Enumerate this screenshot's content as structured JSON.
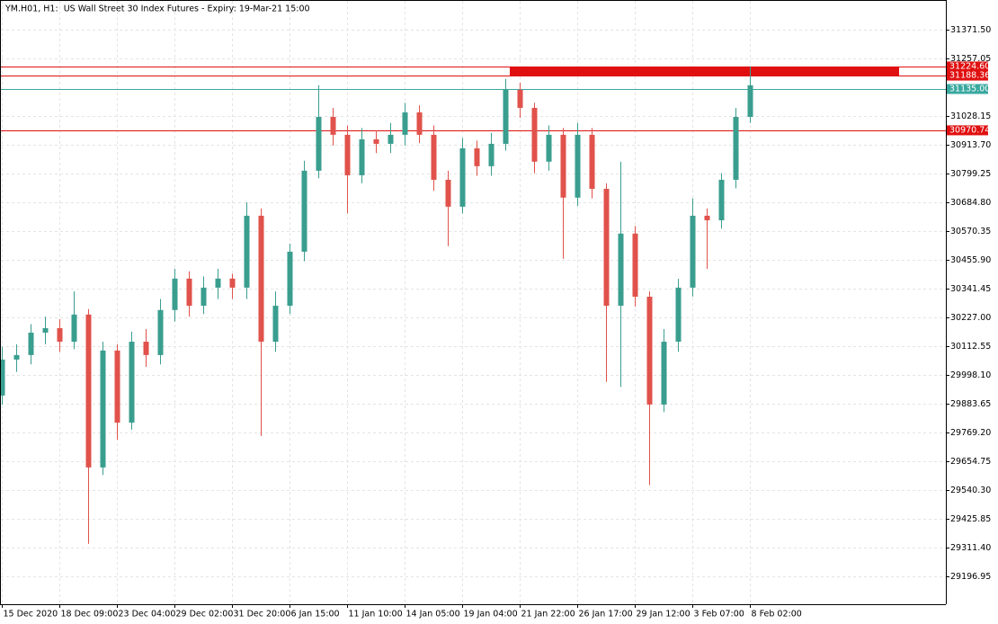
{
  "chart_data": {
    "type": "candlestick",
    "title": "YM.H01, H1:  US Wall Street 30 Index Futures - Expiry: 19-Mar-21 15:00",
    "categories": [
      "15 Dec 2020",
      null,
      null,
      null,
      "18 Dec 09:00",
      null,
      null,
      null,
      "23 Dec 04:00",
      null,
      null,
      null,
      "29 Dec 02:00",
      null,
      null,
      null,
      "31 Dec 20:00",
      null,
      null,
      null,
      "6 Jan 15:00",
      null,
      null,
      null,
      "11 Jan 10:00",
      null,
      null,
      null,
      "14 Jan 05:00",
      null,
      null,
      null,
      "19 Jan 04:00",
      null,
      null,
      null,
      "21 Jan 22:00",
      null,
      null,
      null,
      "26 Jan 17:00",
      null,
      null,
      null,
      "29 Jan 12:00",
      null,
      null,
      null,
      "3 Feb 07:00",
      null,
      null,
      null,
      "8 Feb 02:00"
    ],
    "open": [
      29916,
      30059,
      30077,
      30166,
      30184,
      30130,
      30238,
      29630,
      30095,
      29808,
      30130,
      30077,
      30256,
      30381,
      30273,
      30345,
      30381,
      30345,
      30631,
      30130,
      30273,
      30488,
      30810,
      31024,
      30953,
      30792,
      30935,
      30917,
      30953,
      31042,
      30953,
      30774,
      30667,
      30899,
      30828,
      30917,
      31132,
      31060,
      30846,
      30953,
      30703,
      30953,
      30738,
      30273,
      30560,
      30309,
      29880,
      30130,
      30345,
      30631,
      30613,
      30774,
      31024
    ],
    "high": [
      30110,
      30120,
      30200,
      30230,
      30220,
      30330,
      30260,
      30130,
      30120,
      30170,
      30180,
      30300,
      30420,
      30410,
      30390,
      30420,
      30400,
      30685,
      30660,
      30330,
      30520,
      30850,
      31150,
      31060,
      30990,
      30980,
      30970,
      31000,
      31080,
      31070,
      30990,
      30810,
      30940,
      30930,
      30960,
      31175,
      31160,
      31080,
      30990,
      30980,
      31000,
      30980,
      30760,
      30846,
      30590,
      30330,
      30180,
      30380,
      30700,
      30660,
      30800,
      31060,
      31225
    ],
    "low": [
      29880,
      30010,
      30040,
      30120,
      30090,
      30100,
      29326,
      29600,
      29740,
      29780,
      30030,
      30040,
      30210,
      30230,
      30240,
      30300,
      30300,
      30300,
      29755,
      30090,
      30240,
      30450,
      30780,
      30910,
      30640,
      30760,
      30880,
      30880,
      30910,
      30920,
      30730,
      30510,
      30640,
      30790,
      30790,
      30890,
      31020,
      30800,
      30810,
      30460,
      30670,
      30700,
      29970,
      29950,
      30270,
      29560,
      29850,
      30090,
      30310,
      30420,
      30580,
      30740,
      31000
    ],
    "close": [
      30059,
      30077,
      30166,
      30184,
      30130,
      30238,
      29630,
      30095,
      29808,
      30130,
      30077,
      30256,
      30381,
      30273,
      30345,
      30381,
      30345,
      30631,
      30130,
      30273,
      30488,
      30810,
      31024,
      30953,
      30792,
      30935,
      30917,
      30953,
      31042,
      30953,
      30774,
      30667,
      30899,
      30828,
      30917,
      31132,
      31060,
      30846,
      30953,
      30703,
      30953,
      30738,
      30273,
      30560,
      30309,
      29880,
      30130,
      30345,
      30631,
      30613,
      30774,
      31024,
      31150
    ],
    "up_color": "#3a9e8f",
    "down_color": "#e0524b",
    "ylim": [
      29086,
      31489
    ],
    "yticks": [
      {
        "value": 31371.5,
        "label": "31371.50"
      },
      31257.05,
      31028.15,
      {
        "value": 30913.7,
        "label": "30913.70"
      },
      30799.25,
      {
        "value": 30684.8,
        "label": "30684.80"
      },
      30570.35,
      {
        "value": 30455.9,
        "label": "30455.90"
      },
      30341.45,
      {
        "value": 30227,
        "label": "30227.00"
      },
      30112.55,
      {
        "value": 29998.1,
        "label": "29998.10"
      },
      29883.65,
      {
        "value": 29769.2,
        "label": "29769.20"
      },
      29654.75,
      {
        "value": 29540.3,
        "label": "29540.30"
      },
      29425.85,
      {
        "value": 29311.4,
        "label": "29311.40"
      },
      29196.95
    ],
    "levels": [
      {
        "value": 31224.6,
        "label": "31224.60",
        "color": "#e01010"
      },
      {
        "value": 31188.36,
        "color": "#e01010"
      },
      {
        "value": 31135,
        "label": "31135.00",
        "color": "#3aa9a0"
      },
      {
        "value": 30970.74,
        "color": "#e01010"
      }
    ],
    "grid": true
  }
}
